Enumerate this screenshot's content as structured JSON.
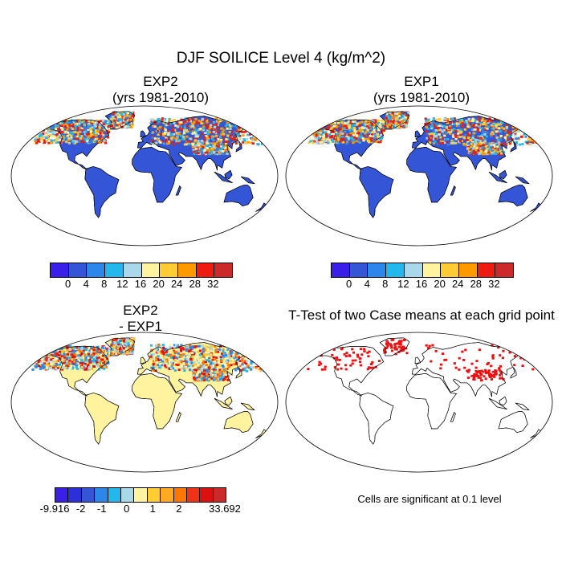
{
  "figure": {
    "title": "DJF SOILICE Level 4 (kg/m^2)"
  },
  "panels": [
    {
      "id": "exp2",
      "title_line1": "EXP2",
      "title_line2": "(yrs 1981-2010)",
      "field": "abs"
    },
    {
      "id": "exp1",
      "title_line1": "EXP1",
      "title_line2": "(yrs 1981-2010)",
      "field": "abs"
    },
    {
      "id": "diff",
      "title_line1": "EXP2",
      "title_line2": "- EXP1",
      "field": "diff"
    },
    {
      "id": "ttest",
      "title_line1": "T-Test of two Case means at each grid point",
      "title_line2": "",
      "field": "sig"
    }
  ],
  "colorbars": {
    "absolute": {
      "colors": [
        "#3a1fe8",
        "#3355d6",
        "#2d86ea",
        "#22b8ec",
        "#a8d8ea",
        "#fff3a0",
        "#ffcc33",
        "#ff9900",
        "#ee1b10",
        "#cc2a2a"
      ],
      "labels": [
        "0",
        "4",
        "8",
        "12",
        "16",
        "20",
        "24",
        "28",
        "32"
      ]
    },
    "difference": {
      "colors": [
        "#3a1fe8",
        "#2d2fd8",
        "#3355d6",
        "#2d86ea",
        "#22b8ec",
        "#a8d8ea",
        "#fff3a0",
        "#ffcc33",
        "#ffaa22",
        "#ff7700",
        "#ee3318",
        "#dd1010",
        "#cc2a2a"
      ],
      "labels": [
        "-9.916",
        "-2",
        "-1",
        "0",
        "1",
        "2",
        "33.692"
      ]
    }
  },
  "significance_note": "Cells are significant at 0.1 level",
  "colors": {
    "ocean": "#ffffff",
    "land_low": "#3355d6",
    "diff_zero": "#fff3a0",
    "significant": "#ee1010"
  }
}
